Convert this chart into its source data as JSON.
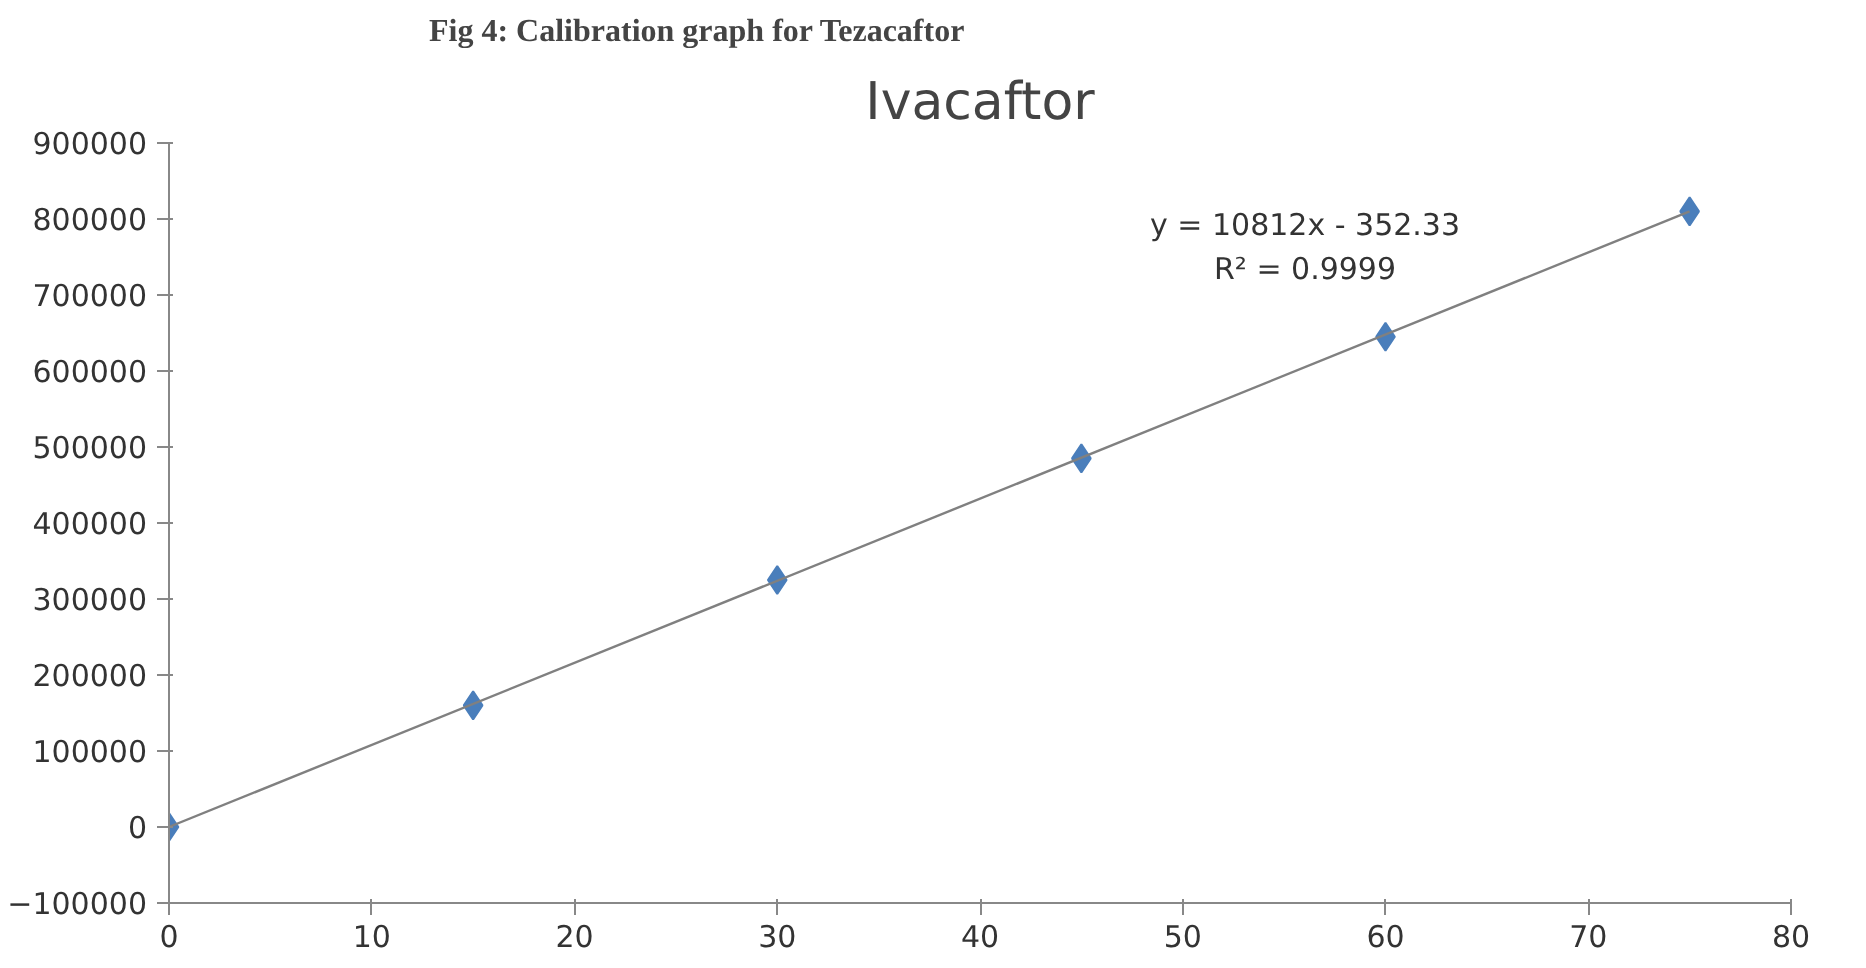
{
  "chart_data": {
    "type": "scatter",
    "title": "Ivacaftor",
    "annotations": [
      "Fig 4: Calibration graph for Tezacaftor",
      "y = 10812x - 352.33",
      "R² = 0.9999"
    ],
    "series": [
      {
        "color": "#4a7ebb",
        "marker": "diamond",
        "x": [
          0,
          15,
          30,
          45,
          60,
          75
        ],
        "values": [
          0,
          160000,
          325000,
          485000,
          645000,
          810000
        ]
      },
      {
        "type": "line",
        "color": "#808080",
        "x": [
          0,
          75
        ],
        "values": [
          0,
          810000
        ]
      }
    ],
    "xlim": [
      0,
      80
    ],
    "xticks": [
      0,
      10,
      20,
      30,
      40,
      50,
      60,
      70,
      80
    ],
    "ylim": [
      -100000,
      900000
    ],
    "yticks": [
      -100000,
      0,
      100000,
      200000,
      300000,
      400000,
      500000,
      600000,
      700000,
      800000,
      900000
    ],
    "grid": false
  }
}
